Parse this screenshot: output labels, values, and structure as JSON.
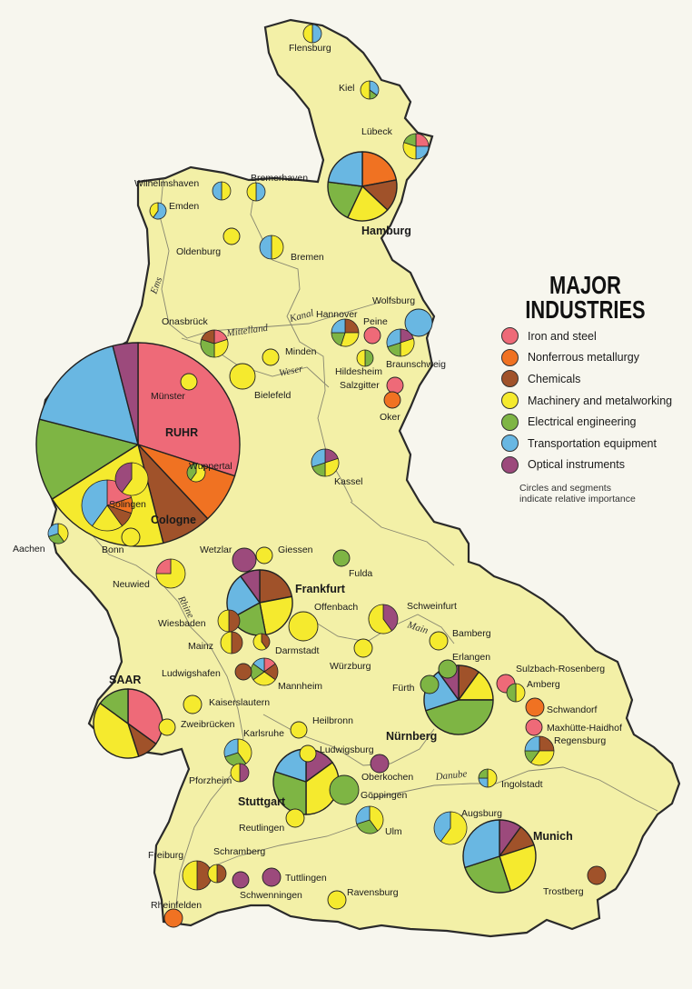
{
  "legend": {
    "title_line1": "MAJOR",
    "title_line2": "INDUSTRIES",
    "items": [
      {
        "key": "iron",
        "label": "Iron and steel",
        "color": "#ee6a78"
      },
      {
        "key": "nonferrous",
        "label": "Nonferrous metallurgy",
        "color": "#f07222"
      },
      {
        "key": "chem",
        "label": "Chemicals",
        "color": "#a0522a"
      },
      {
        "key": "mach",
        "label": "Machinery and metalworking",
        "color": "#f5ea2e"
      },
      {
        "key": "elec",
        "label": "Electrical engineering",
        "color": "#7eb544"
      },
      {
        "key": "trans",
        "label": "Transportation equipment",
        "color": "#69b7e2"
      },
      {
        "key": "optic",
        "label": "Optical instruments",
        "color": "#9c4a7c"
      }
    ],
    "note_line1": "Circles and segments",
    "note_line2": "indicate relative importance"
  },
  "rivers": [
    {
      "key": "ems",
      "label": "Ems"
    },
    {
      "key": "mittelland",
      "label": "Mittelland"
    },
    {
      "key": "kanal",
      "label": "Kanal"
    },
    {
      "key": "weser",
      "label": "Weser"
    },
    {
      "key": "rhine",
      "label": "Rhine"
    },
    {
      "key": "main",
      "label": "Main"
    },
    {
      "key": "danube",
      "label": "Danube"
    }
  ],
  "centers": [
    {
      "id": "flensburg",
      "label": "Flensburg",
      "segments": [
        [
          "trans",
          0.5
        ],
        [
          "mach",
          0.5
        ]
      ]
    },
    {
      "id": "kiel",
      "label": "Kiel",
      "segments": [
        [
          "trans",
          0.35
        ],
        [
          "elec",
          0.15
        ],
        [
          "mach",
          0.5
        ]
      ]
    },
    {
      "id": "lubeck",
      "label": "Lübeck",
      "segments": [
        [
          "iron",
          0.25
        ],
        [
          "trans",
          0.25
        ],
        [
          "mach",
          0.3
        ],
        [
          "elec",
          0.2
        ]
      ]
    },
    {
      "id": "hamburg",
      "label": "Hamburg",
      "segments": [
        [
          "nonferrous",
          0.22
        ],
        [
          "chem",
          0.15
        ],
        [
          "mach",
          0.2
        ],
        [
          "elec",
          0.2
        ],
        [
          "trans",
          0.23
        ]
      ]
    },
    {
      "id": "bremerhaven",
      "label": "Bremerhaven",
      "segments": [
        [
          "trans",
          0.5
        ],
        [
          "mach",
          0.5
        ]
      ]
    },
    {
      "id": "wilhelmshaven",
      "label": "Wilhelmshaven",
      "segments": [
        [
          "mach",
          0.5
        ],
        [
          "trans",
          0.5
        ]
      ]
    },
    {
      "id": "emden",
      "label": "Emden",
      "segments": [
        [
          "trans",
          0.6
        ],
        [
          "mach",
          0.4
        ]
      ]
    },
    {
      "id": "oldenburg",
      "label": "Oldenburg",
      "segments": [
        [
          "mach",
          1.0
        ]
      ]
    },
    {
      "id": "bremen",
      "label": "Bremen",
      "segments": [
        [
          "mach",
          0.5
        ],
        [
          "trans",
          0.5
        ]
      ]
    },
    {
      "id": "wolfsburg",
      "label": "Wolfsburg",
      "segments": [
        [
          "trans",
          1.0
        ]
      ]
    },
    {
      "id": "hannover",
      "label": "Hannover",
      "segments": [
        [
          "chem",
          0.25
        ],
        [
          "mach",
          0.3
        ],
        [
          "elec",
          0.2
        ],
        [
          "trans",
          0.25
        ]
      ]
    },
    {
      "id": "peine",
      "label": "Peine",
      "segments": [
        [
          "iron",
          1.0
        ]
      ]
    },
    {
      "id": "braunschweig",
      "label": "Braunschweig",
      "segments": [
        [
          "optic",
          0.2
        ],
        [
          "mach",
          0.3
        ],
        [
          "elec",
          0.2
        ],
        [
          "trans",
          0.3
        ]
      ]
    },
    {
      "id": "onasbruck",
      "label": "Onasbrück",
      "segments": [
        [
          "iron",
          0.2
        ],
        [
          "mach",
          0.3
        ],
        [
          "elec",
          0.3
        ],
        [
          "chem",
          0.2
        ]
      ]
    },
    {
      "id": "minden",
      "label": "Minden",
      "segments": [
        [
          "mach",
          1.0
        ]
      ]
    },
    {
      "id": "hildesheim",
      "label": "Hildesheim",
      "segments": [
        [
          "elec",
          0.5
        ],
        [
          "mach",
          0.5
        ]
      ]
    },
    {
      "id": "salzgitter",
      "label": "Salzgitter",
      "segments": [
        [
          "iron",
          1.0
        ]
      ]
    },
    {
      "id": "oker",
      "label": "Oker",
      "segments": [
        [
          "nonferrous",
          1.0
        ]
      ]
    },
    {
      "id": "bielefeld",
      "label": "Bielefeld",
      "segments": [
        [
          "mach",
          1.0
        ]
      ]
    },
    {
      "id": "munster",
      "label": "Münster",
      "segments": [
        [
          "mach",
          1.0
        ]
      ]
    },
    {
      "id": "ruhr",
      "label": "RUHR",
      "segments": [
        [
          "iron",
          0.3
        ],
        [
          "nonferrous",
          0.08
        ],
        [
          "chem",
          0.08
        ],
        [
          "mach",
          0.2
        ],
        [
          "elec",
          0.13
        ],
        [
          "trans",
          0.17
        ],
        [
          "optic",
          0.04
        ]
      ]
    },
    {
      "id": "wuppertal",
      "label": "Wuppertal",
      "segments": [
        [
          "mach",
          0.6
        ],
        [
          "elec",
          0.4
        ]
      ]
    },
    {
      "id": "solingen",
      "label": "Solingen",
      "segments": [
        [
          "mach",
          0.6
        ],
        [
          "optic",
          0.4
        ]
      ]
    },
    {
      "id": "cologne",
      "label": "Cologne",
      "segments": [
        [
          "iron",
          0.2
        ],
        [
          "nonferrous",
          0.1
        ],
        [
          "chem",
          0.1
        ],
        [
          "mach",
          0.2
        ],
        [
          "trans",
          0.4
        ]
      ]
    },
    {
      "id": "kassel",
      "label": "Kassel",
      "segments": [
        [
          "optic",
          0.2
        ],
        [
          "mach",
          0.3
        ],
        [
          "elec",
          0.2
        ],
        [
          "trans",
          0.3
        ]
      ]
    },
    {
      "id": "aachen",
      "label": "Aachen",
      "segments": [
        [
          "mach",
          0.4
        ],
        [
          "elec",
          0.3
        ],
        [
          "trans",
          0.3
        ]
      ]
    },
    {
      "id": "bonn",
      "label": "Bonn",
      "segments": [
        [
          "mach",
          1.0
        ]
      ]
    },
    {
      "id": "neuwied",
      "label": "Neuwied",
      "segments": [
        [
          "mach",
          0.75
        ],
        [
          "iron",
          0.25
        ]
      ]
    },
    {
      "id": "wetzlar",
      "label": "Wetzlar",
      "segments": [
        [
          "optic",
          1.0
        ]
      ]
    },
    {
      "id": "giessen",
      "label": "Giessen",
      "segments": [
        [
          "mach",
          1.0
        ]
      ]
    },
    {
      "id": "fulda",
      "label": "Fulda",
      "segments": [
        [
          "elec",
          1.0
        ]
      ]
    },
    {
      "id": "frankfurt",
      "label": "Frankfurt",
      "segments": [
        [
          "chem",
          0.22
        ],
        [
          "mach",
          0.25
        ],
        [
          "elec",
          0.2
        ],
        [
          "trans",
          0.23
        ],
        [
          "optic",
          0.1
        ]
      ]
    },
    {
      "id": "offenbach",
      "label": "Offenbach",
      "segments": [
        [
          "mach",
          1.0
        ]
      ]
    },
    {
      "id": "wiesbaden",
      "label": "Wiesbaden",
      "segments": [
        [
          "chem",
          0.5
        ],
        [
          "mach",
          0.5
        ]
      ]
    },
    {
      "id": "mainz",
      "label": "Mainz",
      "segments": [
        [
          "chem",
          0.5
        ],
        [
          "mach",
          0.5
        ]
      ]
    },
    {
      "id": "darmstadt",
      "label": "Darmstadt",
      "segments": [
        [
          "chem",
          0.4
        ],
        [
          "mach",
          0.6
        ]
      ]
    },
    {
      "id": "ludwigshafen",
      "label": "Ludwigshafen",
      "segments": [
        [
          "chem",
          1.0
        ]
      ]
    },
    {
      "id": "mannheim",
      "label": "Mannheim",
      "segments": [
        [
          "iron",
          0.15
        ],
        [
          "chem",
          0.2
        ],
        [
          "mach",
          0.3
        ],
        [
          "elec",
          0.2
        ],
        [
          "trans",
          0.15
        ]
      ]
    },
    {
      "id": "kaiserslautern",
      "label": "Kaiserslautern",
      "segments": [
        [
          "mach",
          1.0
        ]
      ]
    },
    {
      "id": "saar",
      "label": "SAAR",
      "segments": [
        [
          "iron",
          0.35
        ],
        [
          "chem",
          0.1
        ],
        [
          "mach",
          0.4
        ],
        [
          "elec",
          0.15
        ]
      ]
    },
    {
      "id": "zweibrucken",
      "label": "Zweibrücken",
      "segments": [
        [
          "mach",
          1.0
        ]
      ]
    },
    {
      "id": "schweinfurt",
      "label": "Schweinfurt",
      "segments": [
        [
          "optic",
          0.4
        ],
        [
          "mach",
          0.6
        ]
      ]
    },
    {
      "id": "bamberg",
      "label": "Bamberg",
      "segments": [
        [
          "mach",
          1.0
        ]
      ]
    },
    {
      "id": "wurzburg",
      "label": "Würzburg",
      "segments": [
        [
          "mach",
          1.0
        ]
      ]
    },
    {
      "id": "erlangen",
      "label": "Erlangen",
      "segments": [
        [
          "elec",
          1.0
        ]
      ]
    },
    {
      "id": "furth",
      "label": "Fürth",
      "segments": [
        [
          "elec",
          1.0
        ]
      ]
    },
    {
      "id": "nurnberg",
      "label": "Nürnberg",
      "segments": [
        [
          "chem",
          0.1
        ],
        [
          "mach",
          0.15
        ],
        [
          "elec",
          0.45
        ],
        [
          "trans",
          0.2
        ],
        [
          "optic",
          0.1
        ]
      ]
    },
    {
      "id": "sulzbach",
      "label": "Sulzbach-Rosenberg",
      "segments": [
        [
          "iron",
          1.0
        ]
      ]
    },
    {
      "id": "amberg",
      "label": "Amberg",
      "segments": [
        [
          "mach",
          0.5
        ],
        [
          "elec",
          0.5
        ]
      ]
    },
    {
      "id": "schwandorf",
      "label": "Schwandorf",
      "segments": [
        [
          "nonferrous",
          1.0
        ]
      ]
    },
    {
      "id": "maxhutte",
      "label": "Maxhütte-Haidhof",
      "segments": [
        [
          "iron",
          1.0
        ]
      ]
    },
    {
      "id": "regensburg",
      "label": "Regensburg",
      "segments": [
        [
          "chem",
          0.25
        ],
        [
          "mach",
          0.35
        ],
        [
          "elec",
          0.15
        ],
        [
          "trans",
          0.25
        ]
      ]
    },
    {
      "id": "heilbronn",
      "label": "Heilbronn",
      "segments": [
        [
          "mach",
          1.0
        ]
      ]
    },
    {
      "id": "karlsruhe",
      "label": "Karlsruhe",
      "segments": [
        [
          "mach",
          0.4
        ],
        [
          "elec",
          0.3
        ],
        [
          "trans",
          0.3
        ]
      ]
    },
    {
      "id": "ludwigsburg",
      "label": "Ludwigsburg",
      "segments": [
        [
          "mach",
          1.0
        ]
      ]
    },
    {
      "id": "pforzheim",
      "label": "Pforzheim",
      "segments": [
        [
          "optic",
          0.5
        ],
        [
          "mach",
          0.5
        ]
      ]
    },
    {
      "id": "stuttgart",
      "label": "Stuttgart",
      "segments": [
        [
          "optic",
          0.15
        ],
        [
          "mach",
          0.35
        ],
        [
          "elec",
          0.3
        ],
        [
          "trans",
          0.2
        ]
      ]
    },
    {
      "id": "oberkochen",
      "label": "Oberkochen",
      "segments": [
        [
          "optic",
          1.0
        ]
      ]
    },
    {
      "id": "goppingen",
      "label": "Göppingen",
      "segments": [
        [
          "elec",
          1.0
        ]
      ]
    },
    {
      "id": "ingolstadt",
      "label": "Ingolstadt",
      "segments": [
        [
          "mach",
          0.5
        ],
        [
          "trans",
          0.25
        ],
        [
          "elec",
          0.25
        ]
      ]
    },
    {
      "id": "reutlingen",
      "label": "Reutlingen",
      "segments": [
        [
          "mach",
          1.0
        ]
      ]
    },
    {
      "id": "ulm",
      "label": "Ulm",
      "segments": [
        [
          "mach",
          0.4
        ],
        [
          "elec",
          0.3
        ],
        [
          "trans",
          0.3
        ]
      ]
    },
    {
      "id": "augsburg",
      "label": "Augsburg",
      "segments": [
        [
          "mach",
          0.6
        ],
        [
          "trans",
          0.4
        ]
      ]
    },
    {
      "id": "munich",
      "label": "Munich",
      "segments": [
        [
          "optic",
          0.1
        ],
        [
          "chem",
          0.1
        ],
        [
          "mach",
          0.25
        ],
        [
          "elec",
          0.25
        ],
        [
          "trans",
          0.3
        ]
      ]
    },
    {
      "id": "freiburg",
      "label": "Freiburg",
      "segments": [
        [
          "chem",
          0.5
        ],
        [
          "mach",
          0.5
        ]
      ]
    },
    {
      "id": "schramberg",
      "label": "Schramberg",
      "segments": [
        [
          "chem",
          0.5
        ],
        [
          "mach",
          0.5
        ]
      ]
    },
    {
      "id": "tuttlingen",
      "label": "Tuttlingen",
      "segments": [
        [
          "optic",
          1.0
        ]
      ]
    },
    {
      "id": "schwenningen",
      "label": "Schwenningen",
      "segments": [
        [
          "optic",
          1.0
        ]
      ]
    },
    {
      "id": "ravensburg",
      "label": "Ravensburg",
      "segments": [
        [
          "mach",
          1.0
        ]
      ]
    },
    {
      "id": "rheinfelden",
      "label": "Rheinfelden",
      "segments": [
        [
          "nonferrous",
          1.0
        ]
      ]
    },
    {
      "id": "trostberg",
      "label": "Trostberg",
      "segments": [
        [
          "chem",
          1.0
        ]
      ]
    }
  ]
}
